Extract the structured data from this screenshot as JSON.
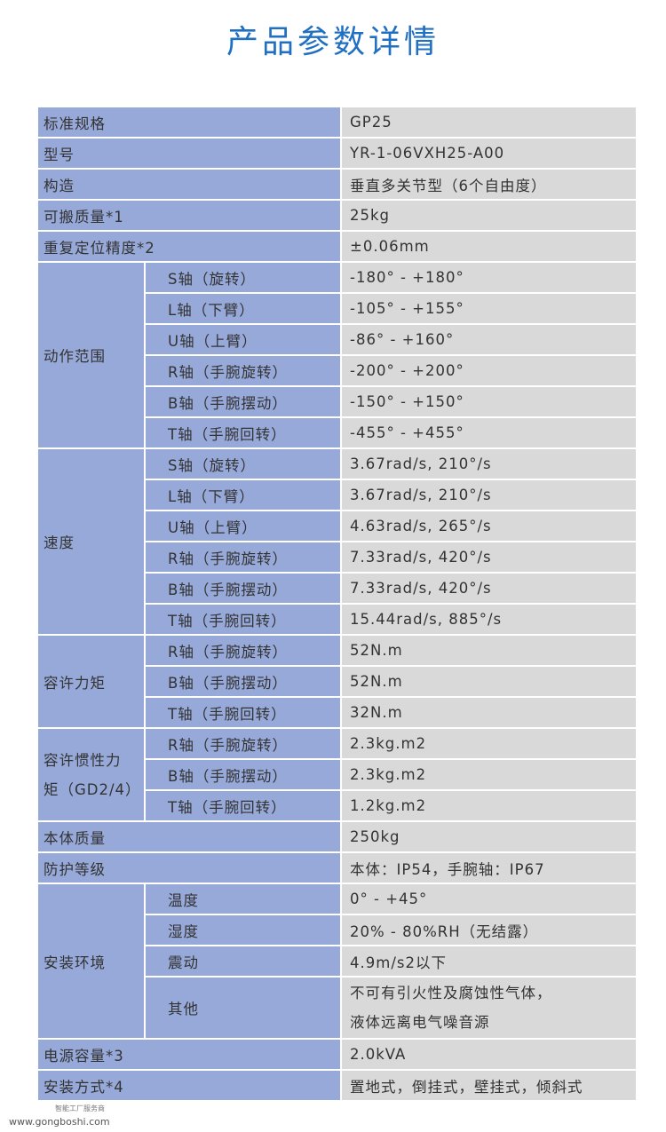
{
  "title": "产品参数详情",
  "rows_top": [
    {
      "label": "标准规格",
      "value": "GP25"
    },
    {
      "label": "型号",
      "value": "YR-1-06VXH25-A00"
    },
    {
      "label": "构造",
      "value": "垂直多关节型（6个自由度）"
    },
    {
      "label": "可搬质量*1",
      "value": "25kg"
    },
    {
      "label": "重复定位精度*2",
      "value": "±0.06mm"
    }
  ],
  "groups": [
    {
      "label": "动作范围",
      "items": [
        {
          "axis": "S轴（旋转）",
          "value": "-180° - +180°"
        },
        {
          "axis": "L轴（下臂）",
          "value": "-105° - +155°"
        },
        {
          "axis": "U轴（上臂）",
          "value": "-86° - +160°"
        },
        {
          "axis": "R轴（手腕旋转）",
          "value": "-200° - +200°"
        },
        {
          "axis": "B轴（手腕摆动）",
          "value": "-150° - +150°"
        },
        {
          "axis": "T轴（手腕回转）",
          "value": "-455° - +455°"
        }
      ]
    },
    {
      "label": "速度",
      "items": [
        {
          "axis": "S轴（旋转）",
          "value": "3.67rad/s, 210°/s"
        },
        {
          "axis": "L轴（下臂）",
          "value": "3.67rad/s, 210°/s"
        },
        {
          "axis": "U轴（上臂）",
          "value": "4.63rad/s, 265°/s"
        },
        {
          "axis": "R轴（手腕旋转）",
          "value": "7.33rad/s, 420°/s"
        },
        {
          "axis": "B轴（手腕摆动）",
          "value": "7.33rad/s, 420°/s"
        },
        {
          "axis": "T轴（手腕回转）",
          "value": "15.44rad/s, 885°/s"
        }
      ]
    },
    {
      "label": "容许力矩",
      "items": [
        {
          "axis": "R轴（手腕旋转）",
          "value": "52N.m"
        },
        {
          "axis": "B轴（手腕摆动）",
          "value": "52N.m"
        },
        {
          "axis": "T轴（手腕回转）",
          "value": "32N.m"
        }
      ]
    },
    {
      "label_line1": "容许惯性力",
      "label_line2": "矩（GD2/4）",
      "items": [
        {
          "axis": "R轴（手腕旋转）",
          "value": "2.3kg.m2"
        },
        {
          "axis": "B轴（手腕摆动）",
          "value": "2.3kg.m2"
        },
        {
          "axis": "T轴（手腕回转）",
          "value": "1.2kg.m2"
        }
      ]
    }
  ],
  "rows_mid": [
    {
      "label": "本体质量",
      "value": "250kg"
    },
    {
      "label": "防护等级",
      "value": "本体：IP54，手腕轴：IP67"
    }
  ],
  "env": {
    "label": "安装环境",
    "items": [
      {
        "axis": "温度",
        "value": "0° - +45°"
      },
      {
        "axis": "湿度",
        "value": "20% - 80%RH（无结露）"
      },
      {
        "axis": "震动",
        "value": "4.9m/s2以下"
      },
      {
        "axis": "其他",
        "value_line1": "不可有引火性及腐蚀性气体，",
        "value_line2": "液体远离电气噪音源"
      }
    ]
  },
  "rows_bottom": [
    {
      "label": "电源容量*3",
      "value": "2.0kVA"
    },
    {
      "label": "安装方式*4",
      "value": "置地式，倒挂式，壁挂式，倾斜式"
    }
  ],
  "logo": {
    "tagline": "智能工厂服务商",
    "url": "www.gongboshi.com"
  },
  "colors": {
    "title": "#1f6fc2",
    "label_bg": "#97a9d9",
    "value_bg": "#d9d9d9"
  }
}
